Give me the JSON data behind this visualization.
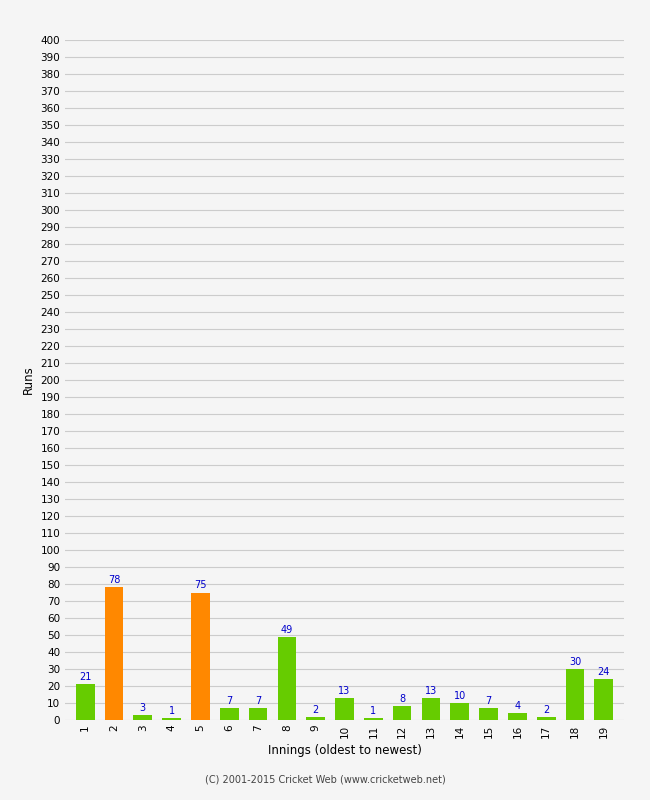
{
  "innings": [
    1,
    2,
    3,
    4,
    5,
    6,
    7,
    8,
    9,
    10,
    11,
    12,
    13,
    14,
    15,
    16,
    17,
    18,
    19
  ],
  "values": [
    21,
    78,
    3,
    1,
    75,
    7,
    7,
    49,
    2,
    13,
    1,
    8,
    13,
    10,
    7,
    4,
    2,
    30,
    24
  ],
  "bar_colors": [
    "#66cc00",
    "#ff8800",
    "#66cc00",
    "#66cc00",
    "#ff8800",
    "#66cc00",
    "#66cc00",
    "#66cc00",
    "#66cc00",
    "#66cc00",
    "#66cc00",
    "#66cc00",
    "#66cc00",
    "#66cc00",
    "#66cc00",
    "#66cc00",
    "#66cc00",
    "#66cc00",
    "#66cc00"
  ],
  "xlabel": "Innings (oldest to newest)",
  "ylabel": "Runs",
  "ylim": [
    0,
    400
  ],
  "ytick_step": 10,
  "value_label_color": "#0000cc",
  "value_label_fontsize": 7,
  "background_color": "#f5f5f5",
  "grid_color": "#cccccc",
  "footer": "(C) 2001-2015 Cricket Web (www.cricketweb.net)",
  "bar_width": 0.65
}
